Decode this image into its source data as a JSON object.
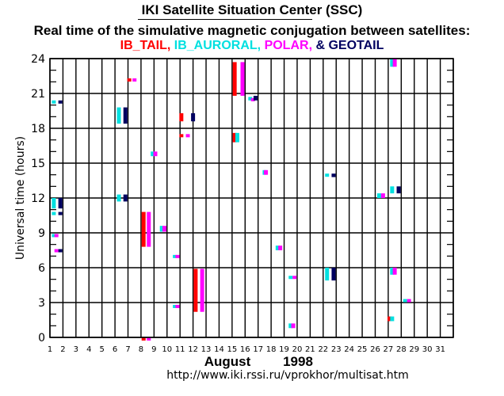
{
  "header": {
    "title": "IKI Satellite Situation Center (SSC)",
    "subtitle": "Real time of the simulative magnetic conjugation between satellites:",
    "legend": [
      {
        "name": "IB_TAIL",
        "suffix": ", ",
        "color": "#ff0000"
      },
      {
        "name": "IB_AURORAL",
        "suffix": ", ",
        "color": "#00e0e0"
      },
      {
        "name": "POLAR",
        "suffix": ", ",
        "color": "#ff00ff"
      },
      {
        "name": "& GEOTAIL",
        "suffix": "",
        "color": "#000060"
      }
    ]
  },
  "footer": {
    "url": "http://www.iki.rssi.ru/vprokhor/multisat.htm"
  },
  "chart_data": {
    "type": "scatter",
    "title": "Real time of the simulative magnetic conjugation between satellites",
    "xlabel": "August",
    "xlabel_year": "1998",
    "ylabel": "Universal time (hours)",
    "x_ticks": [
      "1",
      "2",
      "3",
      "4",
      "5",
      "6",
      "7",
      "8",
      "9",
      "10",
      "11",
      "12",
      "13",
      "14",
      "15",
      "16",
      "17",
      "18",
      "19",
      "20",
      "21",
      "22",
      "23",
      "24",
      "25",
      "26",
      "27",
      "28",
      "29",
      "30",
      "31"
    ],
    "y_ticks": [
      0,
      3,
      6,
      9,
      12,
      15,
      18,
      21,
      24
    ],
    "xlim": [
      1,
      32
    ],
    "ylim": [
      0,
      24
    ],
    "grid": true,
    "legend_position": "top",
    "series": [
      {
        "name": "IB_TAIL",
        "color": "#ff0000",
        "intervals": [
          [
            7.1,
            22.1,
            22.3
          ],
          [
            8.2,
            7.8,
            10.8
          ],
          [
            8.2,
            -0.2,
            0.0
          ],
          [
            11.1,
            18.6,
            19.3
          ],
          [
            11.1,
            17.3,
            17.5
          ],
          [
            12.2,
            2.2,
            5.9
          ],
          [
            15.2,
            20.8,
            23.7
          ],
          [
            15.2,
            16.8,
            17.6
          ],
          [
            27.1,
            1.4,
            1.8
          ]
        ]
      },
      {
        "name": "IB_AURORAL",
        "color": "#00e0e0",
        "intervals": [
          [
            1.3,
            20.2,
            20.4
          ],
          [
            1.3,
            11.1,
            12.0
          ],
          [
            1.3,
            10.6,
            10.8
          ],
          [
            1.3,
            8.7,
            8.9
          ],
          [
            6.3,
            18.4,
            19.8
          ],
          [
            6.3,
            11.7,
            12.3
          ],
          [
            8.9,
            15.6,
            16.0
          ],
          [
            9.6,
            9.1,
            9.6
          ],
          [
            10.6,
            6.9,
            7.1
          ],
          [
            10.6,
            2.6,
            2.8
          ],
          [
            15.4,
            16.8,
            17.6
          ],
          [
            16.4,
            20.4,
            20.7
          ],
          [
            17.5,
            14.0,
            14.4
          ],
          [
            18.5,
            7.5,
            7.9
          ],
          [
            19.5,
            5.1,
            5.3
          ],
          [
            19.5,
            0.8,
            1.2
          ],
          [
            22.3,
            4.9,
            6.0
          ],
          [
            22.3,
            13.9,
            14.1
          ],
          [
            26.3,
            12.0,
            12.4
          ],
          [
            27.3,
            12.4,
            13.0
          ],
          [
            27.3,
            23.3,
            24.0
          ],
          [
            27.3,
            5.4,
            6.0
          ],
          [
            28.3,
            3.1,
            3.3
          ],
          [
            27.3,
            1.4,
            1.8
          ]
        ]
      },
      {
        "name": "POLAR",
        "color": "#ff00ff",
        "intervals": [
          [
            1.5,
            8.7,
            8.9
          ],
          [
            1.5,
            7.4,
            7.6
          ],
          [
            7.5,
            22.1,
            22.3
          ],
          [
            8.6,
            7.8,
            10.8
          ],
          [
            8.6,
            -0.2,
            0.0
          ],
          [
            9.1,
            15.6,
            16.0
          ],
          [
            9.8,
            9.1,
            9.6
          ],
          [
            10.8,
            6.9,
            7.1
          ],
          [
            10.8,
            2.6,
            2.8
          ],
          [
            11.6,
            17.3,
            17.5
          ],
          [
            12.7,
            2.2,
            5.9
          ],
          [
            15.8,
            20.8,
            23.7
          ],
          [
            16.6,
            20.4,
            20.6
          ],
          [
            17.6,
            14.0,
            14.4
          ],
          [
            18.7,
            7.5,
            7.9
          ],
          [
            19.8,
            5.1,
            5.3
          ],
          [
            19.7,
            0.8,
            1.2
          ],
          [
            26.6,
            12.0,
            12.4
          ],
          [
            27.5,
            23.3,
            24.0
          ],
          [
            27.5,
            5.4,
            6.0
          ],
          [
            28.6,
            3.1,
            3.3
          ]
        ]
      },
      {
        "name": "GEOTAIL",
        "color": "#000060",
        "intervals": [
          [
            1.8,
            20.2,
            20.4
          ],
          [
            1.8,
            11.1,
            12.0
          ],
          [
            1.8,
            10.6,
            10.8
          ],
          [
            1.8,
            7.4,
            7.6
          ],
          [
            6.8,
            18.4,
            19.8
          ],
          [
            6.8,
            11.7,
            12.3
          ],
          [
            12.0,
            18.6,
            19.3
          ],
          [
            16.8,
            20.4,
            20.8
          ],
          [
            22.8,
            4.9,
            6.0
          ],
          [
            22.8,
            13.8,
            14.1
          ],
          [
            27.8,
            12.4,
            13.0
          ]
        ]
      }
    ]
  }
}
